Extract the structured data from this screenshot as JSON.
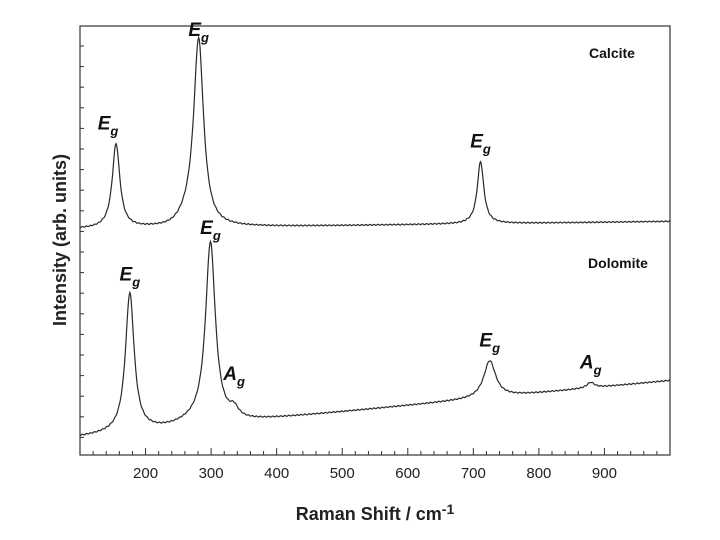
{
  "chart_data": {
    "type": "line",
    "title": "",
    "xlabel": "Raman Shift / cm",
    "xlabel_superscript": "-1",
    "ylabel": "Intensity (arb. units)",
    "xlim": [
      100,
      1000
    ],
    "x_ticks": [
      200,
      300,
      400,
      500,
      600,
      700,
      800,
      900
    ],
    "y_ticks": "unlabeled",
    "grid": false,
    "series": [
      {
        "name": "Calcite",
        "peaks": [
          {
            "x": 155,
            "height": 0.46,
            "width": 7,
            "label": "E",
            "label_sub": "g"
          },
          {
            "x": 281,
            "height": 1.0,
            "width": 9,
            "label": "E",
            "label_sub": "g"
          },
          {
            "x": 711,
            "height": 0.34,
            "width": 6,
            "label": "E",
            "label_sub": "g"
          }
        ]
      },
      {
        "name": "Dolomite",
        "peaks": [
          {
            "x": 176,
            "height": 0.75,
            "width": 8,
            "label": "E",
            "label_sub": "g"
          },
          {
            "x": 299,
            "height": 0.97,
            "width": 9,
            "label": "E",
            "label_sub": "g"
          },
          {
            "x": 335,
            "height": 0.05,
            "width": 8,
            "label": "A",
            "label_sub": "g"
          },
          {
            "x": 725,
            "height": 0.2,
            "width": 11,
            "label": "E",
            "label_sub": "g"
          },
          {
            "x": 879,
            "height": 0.03,
            "width": 7,
            "label": "A",
            "label_sub": "g"
          }
        ]
      }
    ]
  }
}
